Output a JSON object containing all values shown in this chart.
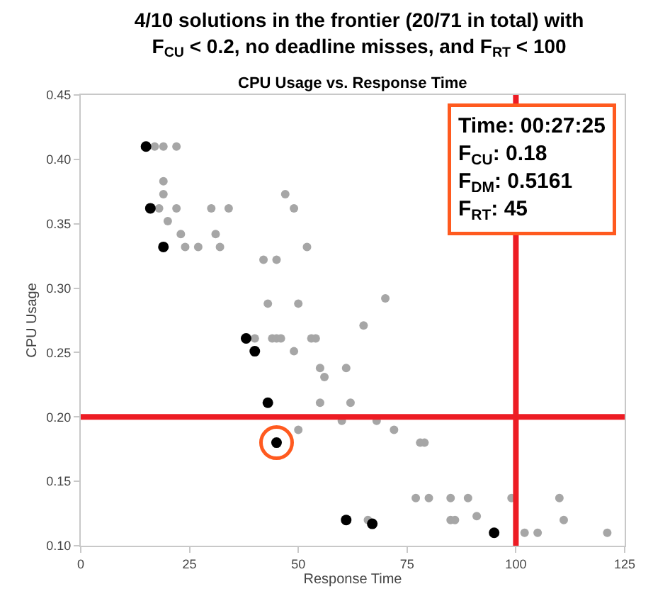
{
  "chart_data": {
    "type": "scatter",
    "title": "4/10 solutions in the frontier (20/71 in total) with\nF$_{CU}$ < 0.2, no deadline misses, and F$_{RT}$ < 100",
    "subtitle": "CPU Usage vs. Response Time",
    "xlabel": "Response Time",
    "ylabel": "CPU Usage",
    "xlim": [
      0,
      125
    ],
    "xticks": [
      0,
      25,
      50,
      75,
      100,
      125
    ],
    "ylim": [
      0.1,
      0.45
    ],
    "yticks": [
      {
        "value": 0.1,
        "label": "0.10"
      },
      {
        "value": 0.15,
        "label": "0.15"
      },
      {
        "value": 0.2,
        "label": "0.20"
      },
      {
        "value": 0.25,
        "label": "0.25"
      },
      {
        "value": 0.3,
        "label": "0.30"
      },
      {
        "value": 0.35,
        "label": "0.35"
      },
      {
        "value": 0.4,
        "label": "0.40"
      },
      {
        "value": 0.45,
        "label": "0.45"
      }
    ],
    "marker": "circle",
    "series": [
      {
        "color": "#a6a6a6",
        "x": [
          17,
          19,
          22,
          19,
          19,
          18,
          22,
          30,
          34,
          47,
          49,
          20,
          23,
          31,
          24,
          27,
          32,
          52,
          42,
          45,
          43,
          50,
          70,
          40,
          44,
          45,
          46,
          53,
          54,
          49,
          55,
          56,
          61,
          55,
          62,
          60,
          50,
          65,
          68,
          72,
          78,
          79,
          77,
          80,
          85,
          89,
          99,
          110,
          91,
          85,
          86,
          111,
          66,
          102,
          105,
          121
        ],
        "values": [
          0.41,
          0.41,
          0.41,
          0.383,
          0.373,
          0.362,
          0.362,
          0.362,
          0.362,
          0.373,
          0.362,
          0.352,
          0.342,
          0.342,
          0.332,
          0.332,
          0.332,
          0.332,
          0.322,
          0.322,
          0.288,
          0.288,
          0.292,
          0.261,
          0.261,
          0.261,
          0.261,
          0.261,
          0.261,
          0.251,
          0.238,
          0.231,
          0.238,
          0.211,
          0.211,
          0.197,
          0.19,
          0.271,
          0.197,
          0.19,
          0.18,
          0.18,
          0.137,
          0.137,
          0.137,
          0.137,
          0.137,
          0.137,
          0.123,
          0.12,
          0.12,
          0.12,
          0.12,
          0.11,
          0.11,
          0.11
        ]
      },
      {
        "color": "#000000",
        "x": [
          15,
          16,
          19,
          38,
          40,
          43,
          45,
          61,
          67,
          95
        ],
        "values": [
          0.41,
          0.362,
          0.332,
          0.261,
          0.251,
          0.211,
          0.18,
          0.12,
          0.117,
          0.11
        ]
      },
      {
        "color": "#ff5a1f",
        "marker": "circle",
        "x": [
          45
        ],
        "values": [
          0.18
        ]
      }
    ],
    "ref_lines": [
      {
        "axis": "x",
        "value": 100,
        "color": "#ed1c24"
      },
      {
        "axis": "y",
        "value": 0.2,
        "color": "#ed1c24"
      }
    ],
    "annotations": [
      "Time: 00:27:25\nF$_{CU}$: 0.18\nF$_{DM}$: 0.5161\nF$_{RT}$: 45"
    ]
  }
}
